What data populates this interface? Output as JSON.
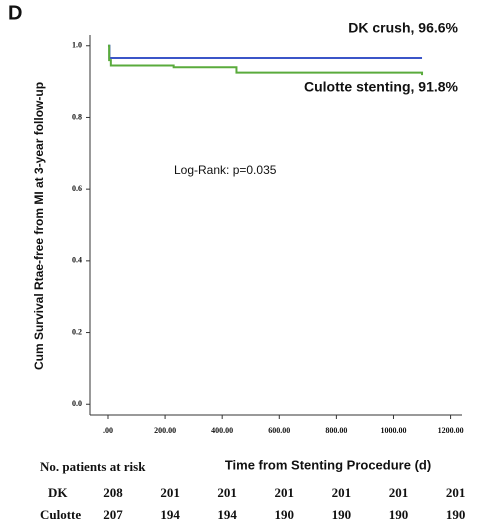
{
  "chart_data": {
    "type": "line",
    "step": true,
    "panel_label": "D",
    "ylabel": "Cum Survival Rtae-free from MI at 3-year follow-up",
    "xlabel": "Time from Stenting Procedure (d)",
    "annotation": "Log-Rank: p=0.035",
    "xlim": [
      -63,
      1240
    ],
    "ylim": [
      -0.03,
      1.03
    ],
    "xticks": [
      {
        "value": 0,
        "label": ".00"
      },
      {
        "value": 200,
        "label": "200.00"
      },
      {
        "value": 400,
        "label": "400.00"
      },
      {
        "value": 600,
        "label": "600.00"
      },
      {
        "value": 800,
        "label": "800.00"
      },
      {
        "value": 1000,
        "label": "1000.00"
      },
      {
        "value": 1200,
        "label": "1200.00"
      }
    ],
    "yticks": [
      {
        "value": 0,
        "label": "0.0"
      },
      {
        "value": 0.2,
        "label": "0.2"
      },
      {
        "value": 0.4,
        "label": "0.4"
      },
      {
        "value": 0.6,
        "label": "0.6"
      },
      {
        "value": 0.8,
        "label": "0.8"
      },
      {
        "value": 1,
        "label": "1.0"
      }
    ],
    "series": [
      {
        "name": "DK crush, 96.6%",
        "color": "#3b55c8",
        "x": [
          0,
          5,
          1100
        ],
        "values": [
          1.0,
          0.966,
          0.966
        ]
      },
      {
        "name": "Culotte stenting, 91.8%",
        "color": "#5aab3c",
        "x": [
          0,
          4,
          10,
          230,
          450,
          1100
        ],
        "values": [
          1.0,
          0.96,
          0.945,
          0.94,
          0.925,
          0.918
        ]
      }
    ],
    "risk_table": {
      "title": "No. patients at risk",
      "rows": [
        {
          "label": "DK",
          "values": [
            208,
            201,
            201,
            201,
            201,
            201,
            201
          ]
        },
        {
          "label": "Culotte",
          "values": [
            207,
            194,
            194,
            190,
            190,
            190,
            190
          ]
        }
      ]
    }
  }
}
